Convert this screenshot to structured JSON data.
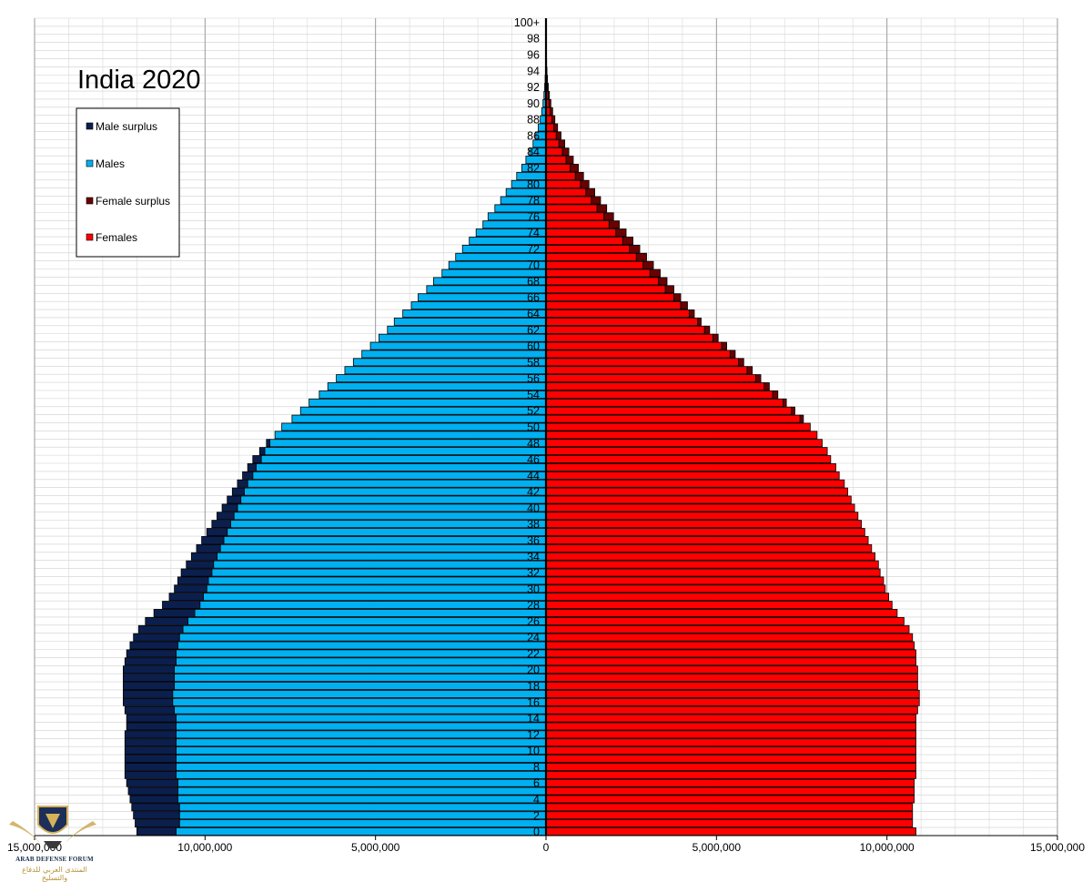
{
  "chart_data": {
    "type": "bar",
    "orientation": "horizontal-population-pyramid",
    "title": "India 2020",
    "legend": {
      "placement": "top-left",
      "items": [
        {
          "label": "Male surplus",
          "color": "#0b1f4e"
        },
        {
          "label": "Males",
          "color": "#00b0f0"
        },
        {
          "label": "Female surplus",
          "color": "#6b0000"
        },
        {
          "label": "Females",
          "color": "#ff0000"
        }
      ]
    },
    "colors": {
      "male_surplus": "#0b1f4e",
      "males": "#00b0f0",
      "female_surplus": "#6b0000",
      "females": "#ff0000"
    },
    "xlim": [
      -15000000,
      15000000
    ],
    "x_ticks": [
      -15000000,
      -10000000,
      -5000000,
      0,
      5000000,
      10000000,
      15000000
    ],
    "x_tick_labels": [
      "15,000,000",
      "10,000,000",
      "5,000,000",
      "0",
      "5,000,000",
      "10,000,000",
      "15,000,000"
    ],
    "y_tick_labels": [
      "0",
      "2",
      "4",
      "6",
      "8",
      "10",
      "12",
      "14",
      "16",
      "18",
      "20",
      "22",
      "24",
      "26",
      "28",
      "30",
      "32",
      "34",
      "36",
      "38",
      "40",
      "42",
      "44",
      "46",
      "48",
      "50",
      "52",
      "54",
      "56",
      "58",
      "60",
      "62",
      "64",
      "66",
      "68",
      "70",
      "72",
      "74",
      "76",
      "78",
      "80",
      "82",
      "84",
      "86",
      "88",
      "90",
      "92",
      "94",
      "96",
      "98",
      "100+"
    ],
    "grid": true,
    "ages": [
      "0",
      "1",
      "2",
      "3",
      "4",
      "5",
      "6",
      "7",
      "8",
      "9",
      "10",
      "11",
      "12",
      "13",
      "14",
      "15",
      "16",
      "17",
      "18",
      "19",
      "20",
      "21",
      "22",
      "23",
      "24",
      "25",
      "26",
      "27",
      "28",
      "29",
      "30",
      "31",
      "32",
      "33",
      "34",
      "35",
      "36",
      "37",
      "38",
      "39",
      "40",
      "41",
      "42",
      "43",
      "44",
      "45",
      "46",
      "47",
      "48",
      "49",
      "50",
      "51",
      "52",
      "53",
      "54",
      "55",
      "56",
      "57",
      "58",
      "59",
      "60",
      "61",
      "62",
      "63",
      "64",
      "65",
      "66",
      "67",
      "68",
      "69",
      "70",
      "71",
      "72",
      "73",
      "74",
      "75",
      "76",
      "77",
      "78",
      "79",
      "80",
      "81",
      "82",
      "83",
      "84",
      "85",
      "86",
      "87",
      "88",
      "89",
      "90",
      "91",
      "92",
      "93",
      "94",
      "95",
      "96",
      "97",
      "98",
      "99",
      "100+"
    ],
    "males": [
      12000000,
      12050000,
      12100000,
      12150000,
      12200000,
      12250000,
      12300000,
      12350000,
      12350000,
      12350000,
      12350000,
      12350000,
      12350000,
      12300000,
      12300000,
      12350000,
      12400000,
      12400000,
      12400000,
      12400000,
      12400000,
      12350000,
      12300000,
      12200000,
      12100000,
      11950000,
      11750000,
      11500000,
      11250000,
      11050000,
      10900000,
      10800000,
      10700000,
      10550000,
      10400000,
      10250000,
      10100000,
      9950000,
      9800000,
      9650000,
      9500000,
      9350000,
      9200000,
      9050000,
      8900000,
      8750000,
      8600000,
      8400000,
      8200000,
      7950000,
      7750000,
      7450000,
      7200000,
      6950000,
      6650000,
      6400000,
      6150000,
      5900000,
      5650000,
      5400000,
      5150000,
      4900000,
      4650000,
      4450000,
      4200000,
      3950000,
      3750000,
      3500000,
      3300000,
      3050000,
      2850000,
      2650000,
      2450000,
      2250000,
      2050000,
      1850000,
      1700000,
      1500000,
      1330000,
      1170000,
      1010000,
      860000,
      710000,
      590000,
      480000,
      380000,
      300000,
      230000,
      170000,
      125000,
      88000,
      60000,
      40000,
      26000,
      17000,
      11000,
      7000,
      4000,
      2500,
      1500,
      2000
    ],
    "females": [
      10850000,
      10750000,
      10750000,
      10750000,
      10800000,
      10800000,
      10800000,
      10850000,
      10850000,
      10850000,
      10850000,
      10850000,
      10850000,
      10850000,
      10850000,
      10900000,
      10950000,
      10950000,
      10900000,
      10900000,
      10900000,
      10850000,
      10850000,
      10800000,
      10750000,
      10650000,
      10500000,
      10300000,
      10150000,
      10050000,
      9950000,
      9900000,
      9800000,
      9750000,
      9650000,
      9550000,
      9450000,
      9350000,
      9250000,
      9150000,
      9050000,
      8950000,
      8850000,
      8750000,
      8600000,
      8500000,
      8350000,
      8250000,
      8100000,
      7950000,
      7750000,
      7550000,
      7300000,
      7050000,
      6800000,
      6550000,
      6300000,
      6050000,
      5800000,
      5550000,
      5300000,
      5050000,
      4800000,
      4550000,
      4350000,
      4150000,
      3950000,
      3750000,
      3550000,
      3350000,
      3150000,
      2950000,
      2750000,
      2550000,
      2350000,
      2150000,
      1980000,
      1780000,
      1600000,
      1430000,
      1260000,
      1100000,
      950000,
      800000,
      670000,
      550000,
      440000,
      340000,
      260000,
      195000,
      143000,
      100000,
      68000,
      45000,
      29000,
      18000,
      11000,
      6500,
      3800,
      2200,
      3000
    ]
  },
  "watermark": {
    "title": "ARAB DEFENSE FORUM",
    "subtitle": "المنتدى العربي للدفاع والتسليح"
  }
}
